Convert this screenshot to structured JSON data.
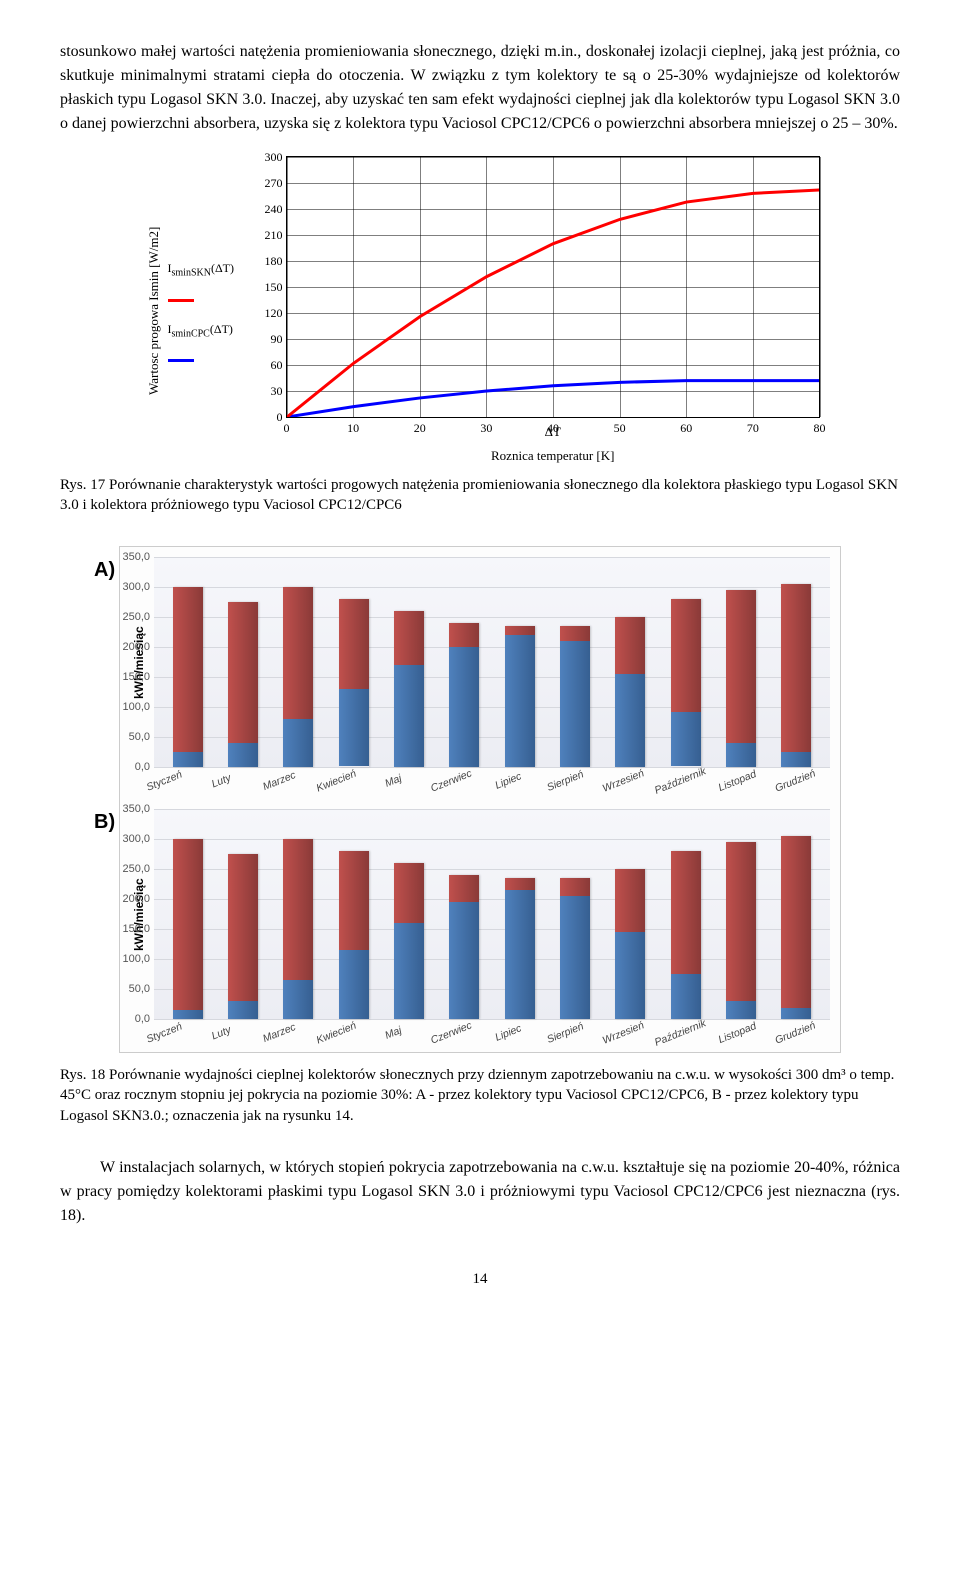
{
  "paragraph1": "stosunkowo małej wartości natężenia promieniowania słonecznego, dzięki m.in., doskonałej izolacji cieplnej, jaką jest próżnia, co skutkuje minimalnymi stratami ciepła do otoczenia. W związku z tym kolektory te są o 25-30% wydajniejsze od kolektorów płaskich typu Logasol SKN 3.0. Inaczej, aby uzyskać ten sam efekt wydajności cieplnej jak dla kolektorów typu Logasol SKN 3.0 o danej powierzchni absorbera, uzyska się z kolektora typu Vaciosol CPC12/CPC6  o powierzchni absorbera mniejszej o 25 – 30%.",
  "fig17": {
    "caption_lead": "Rys. 17 ",
    "caption_rest": "Porównanie charakterystyk wartości progowych natężenia promieniowania słonecznego dla kolektora płaskiego typu Logasol SKN 3.0  i kolektora próżniowego typu Vaciosol CPC12/CPC6",
    "ylabel": "Wartosc progowa Ismin [W/m2]",
    "xlabel_top": "ΔT",
    "xlabel_bottom": "Roznica temperatur [K]",
    "legend_skn": "I_sminSKN(ΔT)",
    "legend_cpc": "I_sminCPC(ΔT)",
    "color_skn": "#ff0000",
    "color_cpc": "#0000ff",
    "grid_color": "#000000",
    "ylim": [
      0,
      300
    ],
    "ytick_step": 30,
    "xlim": [
      0,
      80
    ],
    "xtick_step": 10,
    "line_width": 3,
    "skn_points": [
      [
        0,
        0
      ],
      [
        10,
        62
      ],
      [
        20,
        116
      ],
      [
        30,
        162
      ],
      [
        40,
        200
      ],
      [
        50,
        228
      ],
      [
        60,
        248
      ],
      [
        70,
        258
      ],
      [
        80,
        262
      ]
    ],
    "cpc_points": [
      [
        0,
        0
      ],
      [
        10,
        12
      ],
      [
        20,
        22
      ],
      [
        30,
        30
      ],
      [
        40,
        36
      ],
      [
        50,
        40
      ],
      [
        60,
        42
      ],
      [
        70,
        42
      ],
      [
        80,
        42
      ]
    ]
  },
  "fig18": {
    "caption_lead": "Rys. 18 ",
    "caption_rest": "Porównanie wydajności cieplnej kolektorów słonecznych przy dziennym zapotrzebowaniu na c.w.u. w wysokości 300 dm³ o temp. 45°C oraz rocznym stopniu jej pokrycia na poziomie 30%: A - przez kolektory typu Vaciosol CPC12/CPC6, B - przez kolektory typu Logasol SKN3.0.; oznaczenia jak na rysunku 14.",
    "ylabel": "kWh/miesiąc",
    "ymax": 350,
    "ytick_step": 50,
    "months": [
      "Styczeń",
      "Luty",
      "Marzec",
      "Kwiecień",
      "Maj",
      "Czerwiec",
      "Lipiec",
      "Sierpień",
      "Wrzesień",
      "Październik",
      "Listopad",
      "Grudzień"
    ],
    "panel_a_label": "A)",
    "panel_b_label": "B)",
    "color_red": "#c0504d",
    "color_blue": "#4f81bd",
    "gradient_top": "#f6f7fb",
    "gradient_bottom": "#ecedf3",
    "grid_color": "#d6d8de",
    "panel_a": {
      "red": [
        300,
        275,
        300,
        280,
        260,
        240,
        235,
        235,
        250,
        280,
        295,
        305
      ],
      "blue": [
        25,
        40,
        80,
        130,
        170,
        200,
        220,
        210,
        155,
        90,
        40,
        25
      ]
    },
    "panel_b": {
      "red": [
        300,
        275,
        300,
        280,
        260,
        240,
        235,
        235,
        250,
        280,
        295,
        305
      ],
      "blue": [
        15,
        30,
        65,
        115,
        160,
        195,
        215,
        205,
        145,
        75,
        30,
        18
      ]
    }
  },
  "paragraph2": "W instalacjach solarnych, w których stopień pokrycia zapotrzebowania na c.w.u. kształtuje się na poziomie 20-40%, różnica w pracy pomiędzy kolektorami płaskimi typu Logasol SKN 3.0  i próżniowymi typu Vaciosol CPC12/CPC6 jest nieznaczna (rys. 18).",
  "page_number": "14"
}
